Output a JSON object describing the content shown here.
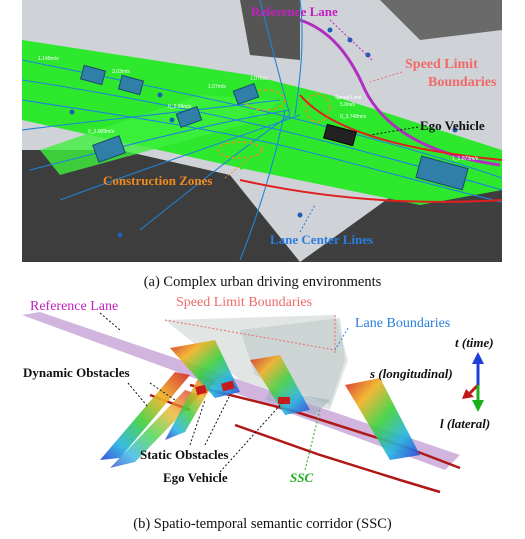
{
  "panel_a": {
    "labels": {
      "reference_lane": "Reference Lane",
      "speed_limit_1": "Speed Limit",
      "speed_limit_2": "Boundaries",
      "ego_vehicle": "Ego Vehicle",
      "construction_zones": "Construction Zones",
      "lane_center_lines": "Lane Center Lines"
    },
    "speeds": [
      "1.149m/s",
      "3.03m/s",
      "1.07m/s",
      "0_2.99m/s",
      "0_2.009m/s",
      "1.07m/s",
      "0_3.749m/s",
      "1_1.073m/s"
    ],
    "speed_limit_tag": "Speed Limit",
    "speed_limit_value": "5.0m/s",
    "caption": "(a) Complex urban driving environments"
  },
  "panel_b": {
    "labels": {
      "reference_lane": "Reference Lane",
      "speed_limit_boundaries": "Speed Limit Boundaries",
      "lane_boundaries": "Lane Boundaries",
      "dynamic_obstacles": "Dynamic Obstacles",
      "static_obstacles": "Static Obstacles",
      "ego_vehicle": "Ego Vehicle",
      "ssc": "SSC"
    },
    "axes": {
      "t": "t (time)",
      "s": "s (longitudinal)",
      "l": "l (lateral)"
    },
    "caption": "(b) Spatio-temporal semantic corridor (SSC)"
  },
  "colors": {
    "label_magenta": "#c21fc2",
    "label_salmon": "#f06a6a",
    "label_orange": "#f08a1e",
    "label_blue": "#2a7de1",
    "label_green": "#18b018",
    "road_green": "#2ee82e",
    "road_dark": "#3a3a3a"
  }
}
